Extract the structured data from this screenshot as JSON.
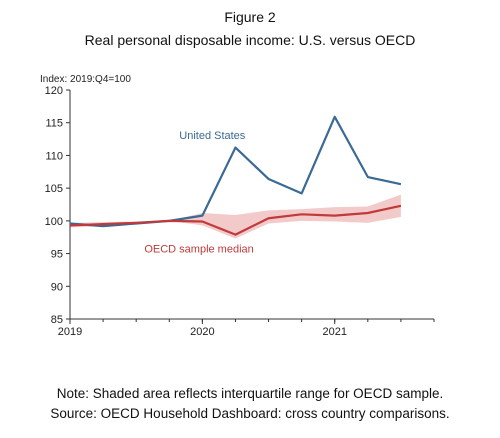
{
  "figure_label": "Figure 2",
  "figure_title": "Real personal disposable income: U.S. versus OECD",
  "notes": [
    "Note: Shaded area reflects interquartile range for OECD sample.",
    "Source: OECD Household Dashboard: cross country comparisons."
  ],
  "chart_data": {
    "type": "line",
    "title": "Real personal disposable income: U.S. versus OECD",
    "ylabel": "Index: 2019:Q4=100",
    "xlabel": "",
    "ylim": [
      85,
      120
    ],
    "yticks": [
      85,
      90,
      95,
      100,
      105,
      110,
      115,
      120
    ],
    "xticks": [
      {
        "label": "2019",
        "q": 0
      },
      {
        "label": "2020",
        "q": 4
      },
      {
        "label": "2021",
        "q": 8
      }
    ],
    "x": [
      "2019Q1",
      "2019Q2",
      "2019Q3",
      "2019Q4",
      "2020Q1",
      "2020Q2",
      "2020Q3",
      "2020Q4",
      "2021Q1",
      "2021Q2",
      "2021Q3"
    ],
    "series": [
      {
        "name": "United States",
        "color": "#3a6a96",
        "values": [
          99.6,
          99.2,
          99.6,
          100.0,
          100.8,
          111.2,
          106.4,
          104.2,
          115.9,
          106.7,
          105.6
        ]
      },
      {
        "name": "OECD sample median",
        "color": "#c0393b",
        "values": [
          99.3,
          99.5,
          99.7,
          100.0,
          99.9,
          97.9,
          100.4,
          101.0,
          100.8,
          101.2,
          102.3
        ]
      }
    ],
    "band": {
      "color": "#f2c4c4",
      "lower": [
        99.0,
        99.2,
        99.5,
        100.0,
        99.3,
        97.3,
        99.6,
        100.0,
        99.9,
        99.7,
        100.6
      ],
      "upper": [
        99.7,
        99.8,
        99.9,
        100.0,
        101.2,
        100.9,
        101.6,
        101.8,
        102.1,
        102.2,
        104.0
      ]
    },
    "grid": false,
    "legend": "inline labels"
  }
}
